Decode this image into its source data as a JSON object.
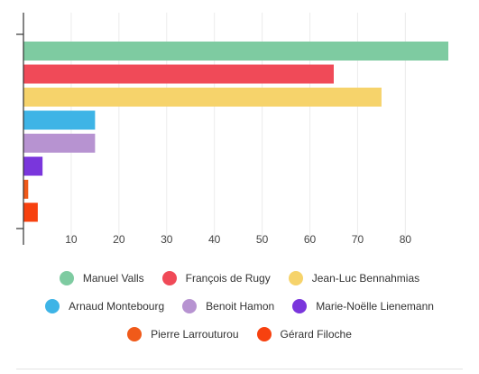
{
  "chart_data": {
    "type": "bar",
    "orientation": "horizontal",
    "title": "",
    "xlabel": "",
    "ylabel": "",
    "xlim": [
      0,
      89
    ],
    "x_ticks": [
      10,
      20,
      30,
      40,
      50,
      60,
      70,
      80
    ],
    "x_tick_labels": [
      "10",
      "20",
      "30",
      "40",
      "50",
      "60",
      "70",
      "80"
    ],
    "categories": [
      "Manuel Valls",
      "François de Rugy",
      "Jean-Luc Bennahmias",
      "Arnaud Montebourg",
      "Benoit Hamon",
      "Marie-Noëlle Lienemann",
      "Pierre Larrouturou",
      "Gérard Filoche"
    ],
    "values": [
      89,
      65,
      75,
      15,
      15,
      4,
      1,
      3
    ],
    "colors": [
      "#7ecba1",
      "#f04a58",
      "#f6d36b",
      "#3eb4e6",
      "#b793d1",
      "#7a36dc",
      "#f05a1a",
      "#f7410f"
    ],
    "grid": true,
    "legend_position": "bottom"
  }
}
